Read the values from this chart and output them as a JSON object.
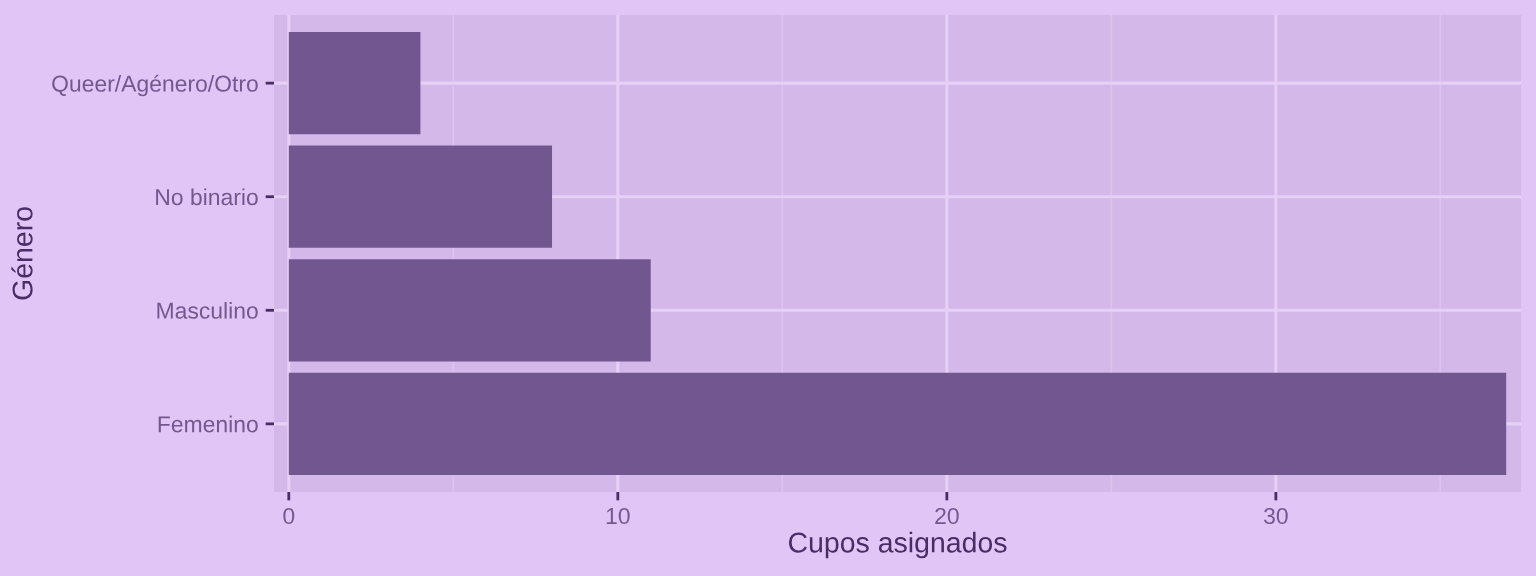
{
  "chart_data": {
    "type": "bar",
    "orientation": "horizontal",
    "categories": [
      "Queer/Agénero/Otro",
      "No binario",
      "Masculino",
      "Femenino"
    ],
    "values": [
      4,
      8,
      11,
      37
    ],
    "color": "#725690",
    "xlabel": "Cupos asignados",
    "ylabel": "Género",
    "xlim": [
      -0.45,
      37.45
    ],
    "xticks": [
      0,
      {
        "value": 5,
        "label": null
      },
      10,
      {
        "value": 15,
        "label": null
      },
      20,
      {
        "value": 25,
        "label": null
      },
      30,
      {
        "value": 35,
        "label": null
      }
    ],
    "grid": true
  }
}
